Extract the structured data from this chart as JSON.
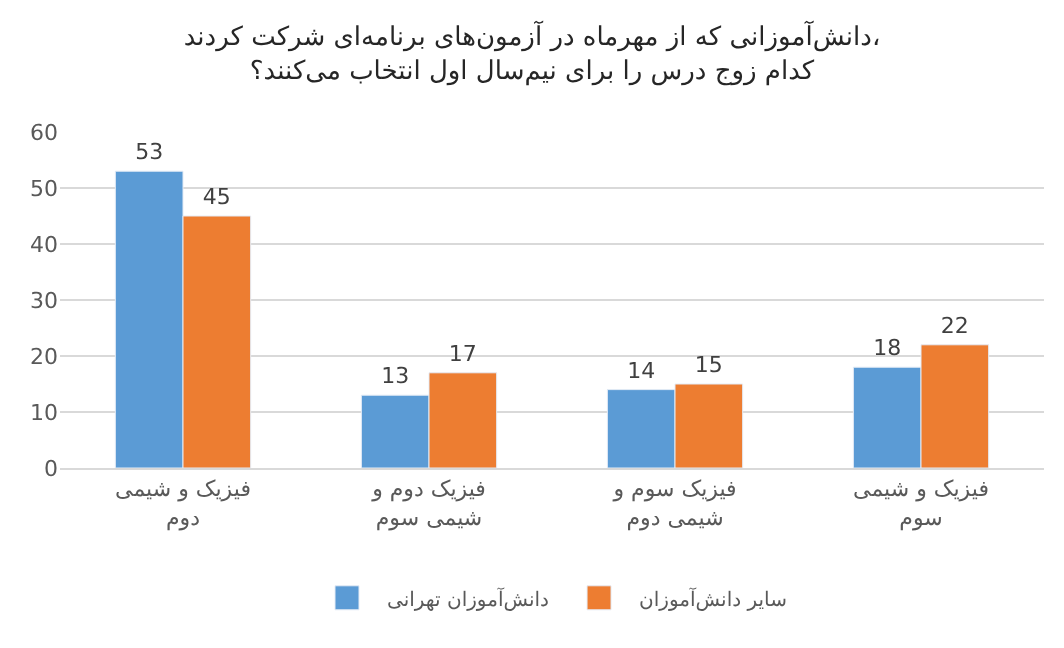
{
  "chart_data": {
    "type": "bar",
    "title": "دانش‌آموزانی که از مهرماه در آزمون‌های برنامه‌ای شرکت کردند، کدام زوج درس را برای نیم‌سال اول انتخاب می‌کنند؟",
    "categories": [
      "فیزیک و شیمی دوم",
      "فیزیک دوم و شیمی سوم",
      "فیزیک سوم و شیمی دوم",
      "فیزیک و شیمی سوم"
    ],
    "series": [
      {
        "name": "دانش‌آموزان تهرانی",
        "color": "#5b9bd5",
        "values": [
          53,
          13,
          14,
          18
        ]
      },
      {
        "name": "سایر دانش‌آموزان",
        "color": "#ed7d31",
        "values": [
          45,
          17,
          15,
          22
        ]
      }
    ],
    "ylim": [
      0,
      60
    ],
    "yticks": [
      0,
      10,
      20,
      30,
      40,
      50,
      60
    ],
    "grid": "y",
    "legend": "bottom",
    "data_labels": true
  }
}
